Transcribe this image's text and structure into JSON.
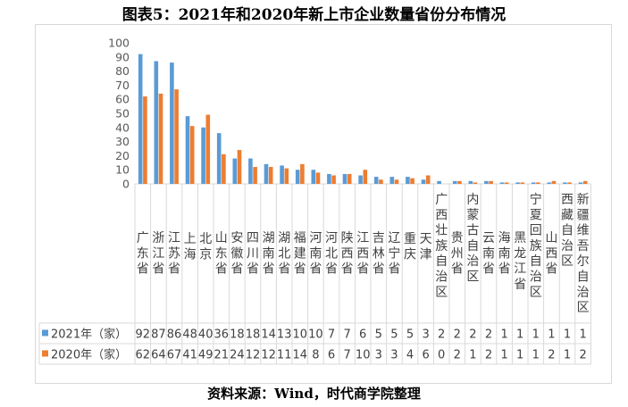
{
  "page_title": "图表5：2021年和2020年新上市企业数量省份分布情况",
  "source_note": "资料来源：Wind，时代商学院整理",
  "chart_data": {
    "type": "bar",
    "title": "图表5：2021年和2020年新上市企业数量省份分布情况",
    "xlabel": "",
    "ylabel": "",
    "ylim": [
      0,
      100
    ],
    "yticks": [
      0,
      10,
      20,
      30,
      40,
      50,
      60,
      70,
      80,
      90,
      100
    ],
    "grid": false,
    "legend_position": "bottom-left (data table)",
    "categories": [
      "广东省",
      "浙江省",
      "江苏省",
      "上海",
      "北京",
      "山东省",
      "安徽省",
      "四川省",
      "湖南省",
      "湖北省",
      "福建省",
      "河南省",
      "河北省",
      "陕西省",
      "江西省",
      "吉林省",
      "辽宁省",
      "重庆",
      "天津",
      "广西壮族自治区",
      "贵州省",
      "内蒙古自治区",
      "云南省",
      "海南省",
      "黑龙江省",
      "宁夏回族自治区",
      "山西省",
      "西藏自治区",
      "新疆维吾尔自治区"
    ],
    "series": [
      {
        "name": "2021年（家）",
        "color": "#5b9bd5",
        "values": [
          92,
          87,
          86,
          48,
          40,
          36,
          18,
          18,
          14,
          13,
          10,
          10,
          7,
          7,
          6,
          5,
          5,
          5,
          3,
          2,
          2,
          2,
          2,
          1,
          1,
          1,
          1,
          1,
          1
        ]
      },
      {
        "name": "2020年（家）",
        "color": "#ed7d31",
        "values": [
          62,
          64,
          67,
          41,
          49,
          21,
          24,
          12,
          12,
          11,
          14,
          8,
          6,
          7,
          10,
          3,
          3,
          4,
          6,
          0,
          2,
          1,
          2,
          1,
          1,
          1,
          2,
          1,
          2
        ]
      }
    ]
  }
}
